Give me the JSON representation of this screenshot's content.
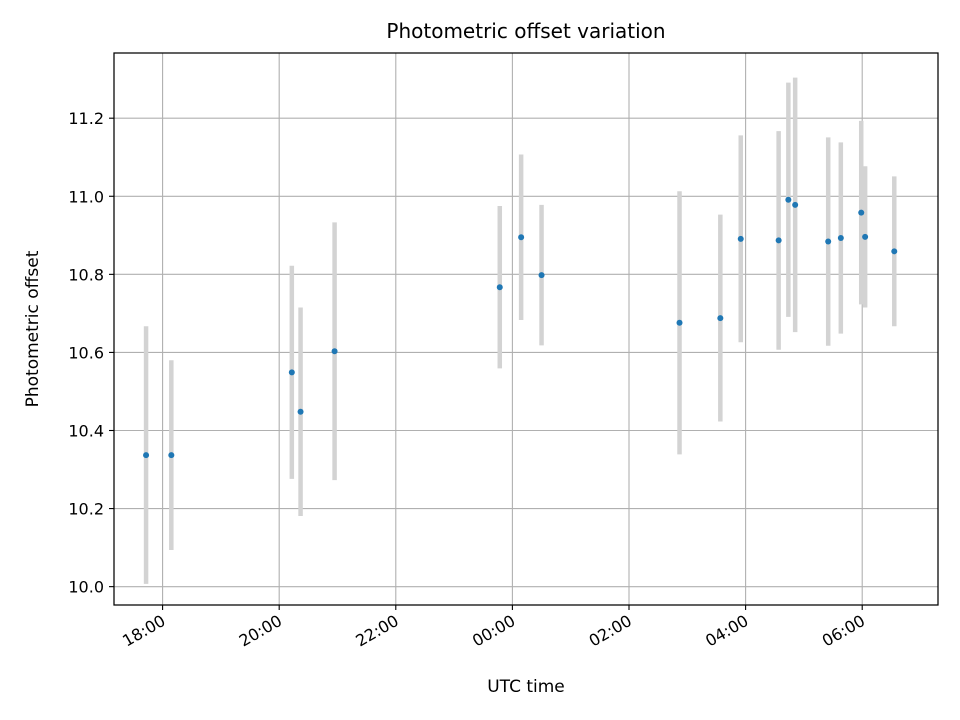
{
  "chart_data": {
    "type": "scatter",
    "title": "Photometric offset variation",
    "xlabel": "UTC time",
    "ylabel": "Photometric offset",
    "x_axis": {
      "kind": "time",
      "start": "2000-01-01T17:10",
      "end": "2000-01-02T07:18",
      "ticks": [
        {
          "t": "2000-01-01T18:00",
          "label": "18:00"
        },
        {
          "t": "2000-01-01T20:00",
          "label": "20:00"
        },
        {
          "t": "2000-01-01T22:00",
          "label": "22:00"
        },
        {
          "t": "2000-01-02T00:00",
          "label": "00:00"
        },
        {
          "t": "2000-01-02T02:00",
          "label": "02:00"
        },
        {
          "t": "2000-01-02T04:00",
          "label": "04:00"
        },
        {
          "t": "2000-01-02T06:00",
          "label": "06:00"
        }
      ]
    },
    "ylim": [
      9.953,
      11.367
    ],
    "yticks": [
      10.0,
      10.2,
      10.4,
      10.6,
      10.8,
      11.0,
      11.2
    ],
    "grid": true,
    "colors": {
      "points": "#1f77b4",
      "errorbars": "#d3d3d3",
      "grid": "#b0b0b0"
    },
    "points": [
      {
        "t": "2000-01-01T17:43",
        "y": 10.337,
        "err": 0.33
      },
      {
        "t": "2000-01-01T18:09",
        "y": 10.337,
        "err": 0.243
      },
      {
        "t": "2000-01-01T20:13",
        "y": 10.549,
        "err": 0.273
      },
      {
        "t": "2000-01-01T20:22",
        "y": 10.448,
        "err": 0.267
      },
      {
        "t": "2000-01-01T20:57",
        "y": 10.603,
        "err": 0.33
      },
      {
        "t": "2000-01-01T23:47",
        "y": 10.767,
        "err": 0.208
      },
      {
        "t": "2000-01-02T00:09",
        "y": 10.895,
        "err": 0.212
      },
      {
        "t": "2000-01-02T00:30",
        "y": 10.798,
        "err": 0.18
      },
      {
        "t": "2000-01-02T02:52",
        "y": 10.676,
        "err": 0.337
      },
      {
        "t": "2000-01-02T03:34",
        "y": 10.688,
        "err": 0.265
      },
      {
        "t": "2000-01-02T03:55",
        "y": 10.891,
        "err": 0.265
      },
      {
        "t": "2000-01-02T04:34",
        "y": 10.887,
        "err": 0.28
      },
      {
        "t": "2000-01-02T04:44",
        "y": 10.991,
        "err": 0.3
      },
      {
        "t": "2000-01-02T04:51",
        "y": 10.978,
        "err": 0.326
      },
      {
        "t": "2000-01-02T05:25",
        "y": 10.884,
        "err": 0.267
      },
      {
        "t": "2000-01-02T05:38",
        "y": 10.893,
        "err": 0.245
      },
      {
        "t": "2000-01-02T05:59",
        "y": 10.958,
        "err": 0.235
      },
      {
        "t": "2000-01-02T06:03",
        "y": 10.896,
        "err": 0.181
      },
      {
        "t": "2000-01-02T06:33",
        "y": 10.859,
        "err": 0.192
      }
    ]
  }
}
